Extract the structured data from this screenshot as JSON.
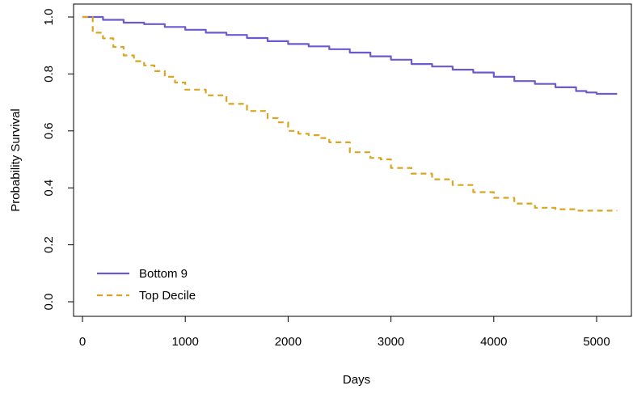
{
  "chart_data": {
    "type": "line",
    "title": "",
    "xlabel": "Days",
    "ylabel": "Probability Survival",
    "xlim": [
      0,
      5300
    ],
    "ylim": [
      -0.02,
      1.0
    ],
    "xticks": [
      0,
      1000,
      2000,
      3000,
      4000,
      5000
    ],
    "yticks": [
      0.0,
      0.2,
      0.4,
      0.6,
      0.8,
      1.0
    ],
    "xtick_labels": [
      "0",
      "1000",
      "2000",
      "3000",
      "4000",
      "5000"
    ],
    "ytick_labels": [
      "0.0",
      "0.2",
      "0.4",
      "0.6",
      "0.8",
      "1.0"
    ],
    "grid": false,
    "legend_position": "bottom-left",
    "series": [
      {
        "name": "Bottom 9",
        "color": "#6a5acd",
        "dash": "solid",
        "x": [
          0,
          200,
          400,
          600,
          800,
          1000,
          1200,
          1400,
          1600,
          1800,
          2000,
          2200,
          2400,
          2600,
          2800,
          3000,
          3200,
          3400,
          3600,
          3800,
          4000,
          4200,
          4400,
          4600,
          4800,
          4900,
          5000,
          5200
        ],
        "y": [
          1.0,
          0.99,
          0.98,
          0.975,
          0.965,
          0.955,
          0.945,
          0.937,
          0.926,
          0.915,
          0.905,
          0.897,
          0.887,
          0.875,
          0.862,
          0.85,
          0.835,
          0.826,
          0.815,
          0.805,
          0.79,
          0.775,
          0.765,
          0.753,
          0.74,
          0.735,
          0.73,
          0.73
        ]
      },
      {
        "name": "Top Decile",
        "color": "#daa520",
        "dash": "dashed",
        "x": [
          0,
          100,
          200,
          300,
          400,
          500,
          600,
          700,
          800,
          900,
          1000,
          1200,
          1400,
          1600,
          1800,
          1900,
          2000,
          2100,
          2200,
          2300,
          2400,
          2600,
          2800,
          2900,
          3000,
          3200,
          3400,
          3600,
          3800,
          4000,
          4200,
          4400,
          4600,
          4800,
          5000,
          5200
        ],
        "y": [
          1.0,
          0.945,
          0.925,
          0.895,
          0.865,
          0.845,
          0.83,
          0.81,
          0.79,
          0.77,
          0.745,
          0.725,
          0.695,
          0.67,
          0.645,
          0.63,
          0.6,
          0.59,
          0.585,
          0.575,
          0.56,
          0.525,
          0.505,
          0.5,
          0.47,
          0.45,
          0.43,
          0.41,
          0.385,
          0.365,
          0.345,
          0.33,
          0.325,
          0.32,
          0.32,
          0.32
        ]
      }
    ]
  }
}
